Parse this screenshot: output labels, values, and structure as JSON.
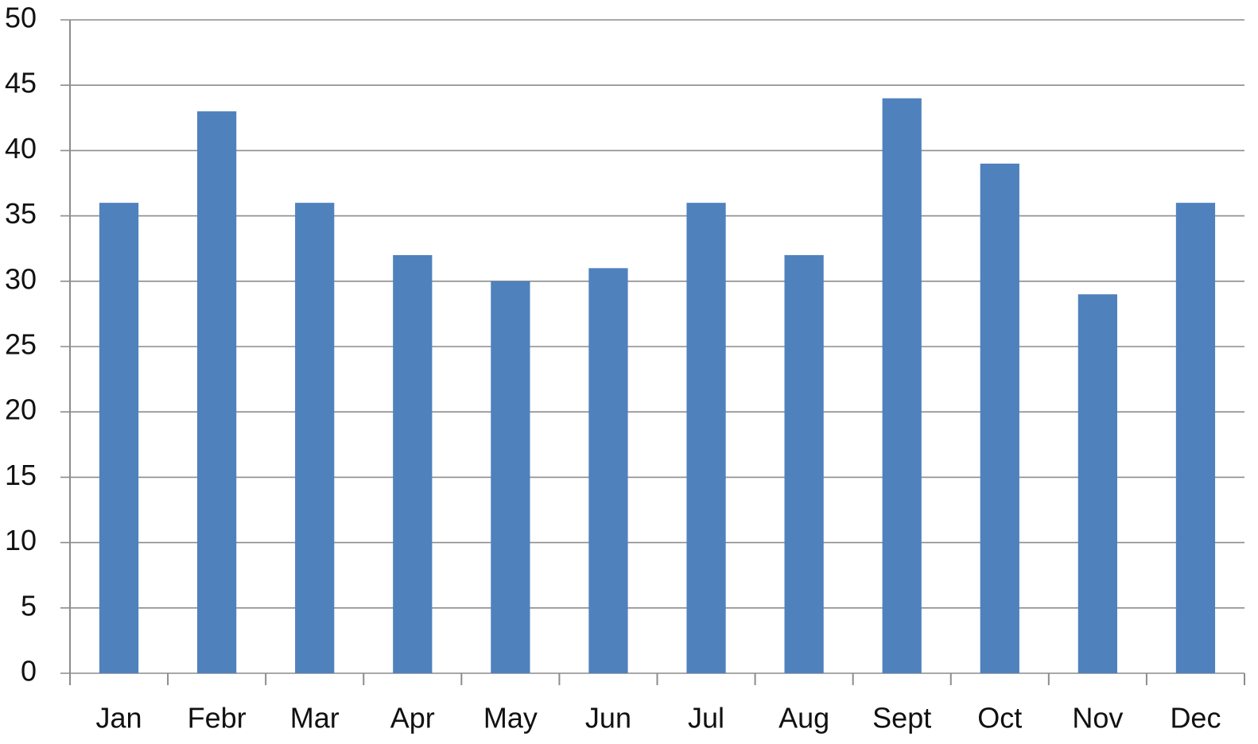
{
  "chart_data": {
    "type": "bar",
    "categories": [
      "Jan",
      "Febr",
      "Mar",
      "Apr",
      "May",
      "Jun",
      "Jul",
      "Aug",
      "Sept",
      "Oct",
      "Nov",
      "Dec"
    ],
    "values": [
      36,
      43,
      36,
      32,
      30,
      31,
      36,
      32,
      44,
      39,
      29,
      36
    ],
    "color": "#4f81bd",
    "ylim": [
      0,
      50
    ],
    "yticks": [
      0,
      5,
      10,
      15,
      20,
      25,
      30,
      35,
      40,
      45,
      50
    ],
    "grid": true
  }
}
